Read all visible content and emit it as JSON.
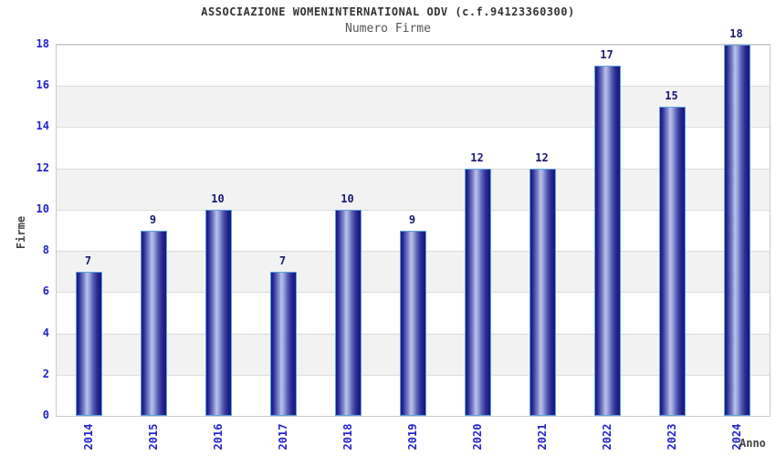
{
  "header": {
    "title": "ASSOCIAZIONE WOMENINTERNATIONAL ODV (c.f.94123360300)",
    "subtitle": "Numero Firme"
  },
  "chart_data": {
    "type": "bar",
    "title": "ASSOCIAZIONE WOMENINTERNATIONAL ODV (c.f.94123360300)",
    "subtitle": "Numero Firme",
    "xlabel": "Anno",
    "ylabel": "Firme",
    "categories": [
      "2014",
      "2015",
      "2016",
      "2017",
      "2018",
      "2019",
      "2020",
      "2021",
      "2022",
      "2023",
      "2024"
    ],
    "values": [
      7,
      9,
      10,
      7,
      10,
      9,
      12,
      12,
      17,
      15,
      18
    ],
    "ylim": [
      0,
      18
    ],
    "yticks": [
      0,
      2,
      4,
      6,
      8,
      10,
      12,
      14,
      16,
      18
    ],
    "grid": true,
    "legend": "none",
    "colors": {
      "tick_label_blue": "#2222cc",
      "value_label_navy": "#191970",
      "bar_dark": "#15157d",
      "bar_light": "#bac2ea",
      "bar_border": "#5ba3dc",
      "band_gray": "#f2f2f2",
      "band_white": "#ffffff",
      "gridline": "#dcdcdc",
      "plot_border": "#cccccc",
      "title_color": "#333333",
      "subtitle_color": "#555555",
      "axis_label_color": "#444444"
    }
  }
}
